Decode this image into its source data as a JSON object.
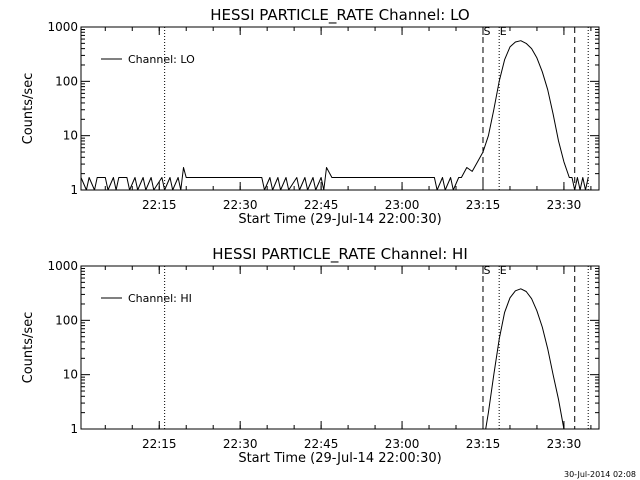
{
  "timestamp": "30-Jul-2014 02:08",
  "chart_data": [
    {
      "type": "line",
      "title": "HESSI PARTICLE_RATE Channel: LO",
      "xlabel": "Start Time (29-Jul-14 22:00:30)",
      "ylabel": "Counts/sec",
      "y_scale": "log",
      "ylim": [
        1,
        1000
      ],
      "xlim": [
        "22:00:30",
        "23:36:30"
      ],
      "x_ticks": [
        "22:15",
        "22:30",
        "22:45",
        "23:00",
        "23:15",
        "23:30"
      ],
      "y_ticks": [
        "1",
        "10",
        "100",
        "1000"
      ],
      "legend": {
        "placement": "top-left",
        "entries": [
          "Channel: LO"
        ]
      },
      "markers": [
        {
          "label": "S",
          "time": "23:15:00",
          "style": "dashed"
        },
        {
          "label": "E",
          "time": "23:18:00",
          "style": "dotted"
        }
      ],
      "extra_lines": [
        {
          "time": "22:16:00",
          "style": "dotted"
        },
        {
          "time": "23:32:00",
          "style": "dashed"
        },
        {
          "time": "23:34:30",
          "style": "dotted"
        }
      ],
      "series": [
        {
          "name": "Channel: LO",
          "x": [
            "22:00:30",
            "22:01:30",
            "22:02:00",
            "22:03:00",
            "22:03:30",
            "22:05:00",
            "22:05:30",
            "22:06:30",
            "22:07:00",
            "22:07:30",
            "22:09:00",
            "22:09:30",
            "22:10:30",
            "22:11:00",
            "22:12:00",
            "22:12:30",
            "22:13:30",
            "22:14:00",
            "22:15:30",
            "22:16:00",
            "22:17:00",
            "22:17:30",
            "22:18:30",
            "22:19:00",
            "22:19:30",
            "22:20:00",
            "22:21:00",
            "22:34:00",
            "22:34:30",
            "22:35:30",
            "22:36:00",
            "22:37:00",
            "22:37:30",
            "22:38:30",
            "22:39:00",
            "22:40:30",
            "22:41:00",
            "22:42:00",
            "22:42:30",
            "22:43:30",
            "22:44:00",
            "22:45:00",
            "22:45:30",
            "22:46:00",
            "22:47:00",
            "23:06:00",
            "23:06:30",
            "23:07:30",
            "23:08:00",
            "23:09:00",
            "23:09:30",
            "23:10:30",
            "23:11:00",
            "23:12:00",
            "23:13:00",
            "23:14:00",
            "23:15:00",
            "23:16:00",
            "23:17:00",
            "23:18:00",
            "23:19:00",
            "23:20:00",
            "23:21:00",
            "23:22:00",
            "23:23:00",
            "23:24:00",
            "23:25:00",
            "23:26:00",
            "23:27:00",
            "23:28:00",
            "23:29:00",
            "23:30:00",
            "23:31:00",
            "23:31:30",
            "23:32:00",
            "23:32:30",
            "23:33:00",
            "23:33:30",
            "23:34:00",
            "23:34:30"
          ],
          "y": [
            1.7,
            1,
            1.7,
            1,
            1.7,
            1.7,
            1,
            1.7,
            1,
            1.7,
            1.7,
            1,
            1.7,
            1,
            1.7,
            1,
            1.7,
            1,
            1.7,
            1,
            1.7,
            1,
            1.7,
            1,
            2.6,
            1.7,
            1.7,
            1.7,
            1,
            1.7,
            1,
            1.7,
            1,
            1.7,
            1,
            1.7,
            1,
            1.7,
            1,
            1.7,
            1,
            1.7,
            1,
            2.6,
            1.7,
            1.7,
            1,
            1.7,
            1,
            1.7,
            1,
            1.7,
            1.7,
            2.6,
            2.2,
            3.3,
            5,
            10,
            30,
            100,
            250,
            430,
            530,
            560,
            500,
            400,
            270,
            150,
            70,
            25,
            8,
            3.3,
            1.7,
            1.7,
            1,
            1.7,
            1,
            1.7,
            1,
            1.7
          ]
        }
      ]
    },
    {
      "type": "line",
      "title": "HESSI PARTICLE_RATE Channel: HI",
      "xlabel": "Start Time (29-Jul-14 22:00:30)",
      "ylabel": "Counts/sec",
      "y_scale": "log",
      "ylim": [
        1,
        1000
      ],
      "xlim": [
        "22:00:30",
        "23:36:30"
      ],
      "x_ticks": [
        "22:15",
        "22:30",
        "22:45",
        "23:00",
        "23:15",
        "23:30"
      ],
      "y_ticks": [
        "1",
        "10",
        "100",
        "1000"
      ],
      "legend": {
        "placement": "top-left",
        "entries": [
          "Channel: HI"
        ]
      },
      "markers": [
        {
          "label": "S",
          "time": "23:15:00",
          "style": "dashed"
        },
        {
          "label": "E",
          "time": "23:18:00",
          "style": "dotted"
        }
      ],
      "extra_lines": [
        {
          "time": "22:16:00",
          "style": "dotted"
        },
        {
          "time": "23:32:00",
          "style": "dashed"
        },
        {
          "time": "23:34:30",
          "style": "dotted"
        }
      ],
      "series": [
        {
          "name": "Channel: HI",
          "x": [
            "23:15:30",
            "23:16:00",
            "23:17:00",
            "23:18:00",
            "23:19:00",
            "23:20:00",
            "23:21:00",
            "23:22:00",
            "23:23:00",
            "23:24:00",
            "23:25:00",
            "23:26:00",
            "23:27:00",
            "23:28:00",
            "23:29:00",
            "23:30:00"
          ],
          "y": [
            1,
            2,
            10,
            45,
            140,
            260,
            350,
            380,
            340,
            250,
            150,
            75,
            30,
            10,
            3.5,
            1
          ]
        }
      ]
    }
  ]
}
